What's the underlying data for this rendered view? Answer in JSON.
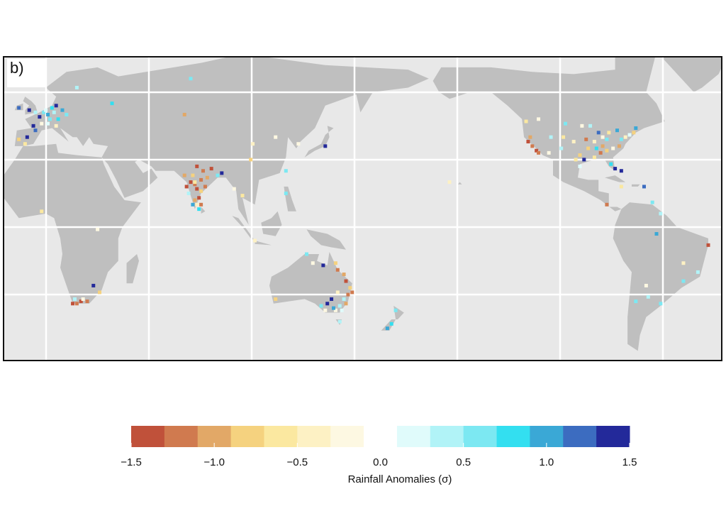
{
  "panel_label": "b)",
  "colorbar": {
    "label": "Rainfall Anomalies (σ)",
    "bounds": [
      -1.5,
      -1.3,
      -1.1,
      -0.9,
      -0.7,
      -0.5,
      -0.3,
      -0.1,
      0.1,
      0.3,
      0.5,
      0.7,
      0.9,
      1.1,
      1.3,
      1.5
    ],
    "colors": [
      "#c0513a",
      "#d07a4f",
      "#e2a867",
      "#f5d27f",
      "#fbe8a0",
      "#fdf1c4",
      "#fdf8e2",
      "#ffffff",
      "#e0fbfb",
      "#b1f3f7",
      "#7ce8f2",
      "#33dff0",
      "#3aa8d6",
      "#3c6cc0",
      "#23299a"
    ],
    "ticks": [
      {
        "value": -1.5,
        "label": "−1.5"
      },
      {
        "value": -1.0,
        "label": "−1.0"
      },
      {
        "value": -0.5,
        "label": "−0.5"
      },
      {
        "value": 0,
        "label": "0.0"
      },
      0.5,
      {
        "value": 1.0,
        "label": "1.0"
      },
      1.5
    ]
  },
  "stations": {
    "lon": [
      -8,
      -3,
      0,
      2,
      4,
      5,
      6,
      8,
      7,
      9,
      10,
      11,
      3,
      -1,
      -4,
      -8,
      13,
      6,
      15,
      10,
      20,
      0,
      -5,
      37,
      75,
      72,
      105,
      140,
      127,
      121,
      116,
      104,
      72,
      75,
      77,
      78,
      80,
      79,
      77,
      76,
      78,
      80,
      83,
      85,
      88,
      90,
      73,
      76,
      81,
      78,
      74,
      80,
      79,
      77,
      82,
      100,
      96,
      121,
      106,
      -17,
      3,
      30,
      18,
      20,
      22,
      25,
      28,
      31,
      19,
      23,
      131,
      134,
      139,
      145,
      146,
      149,
      150,
      152,
      151,
      149,
      150,
      147,
      145,
      144,
      141,
      138,
      140,
      148,
      143,
      146,
      153,
      147,
      116,
      174,
      172,
      170,
      -160,
      -123,
      -122,
      -120,
      -118,
      -117,
      -121,
      -112,
      -111,
      -105,
      -106,
      -100,
      -97,
      -95,
      -97,
      -94,
      -90,
      -88,
      -86,
      -84,
      -84,
      -82,
      -80,
      -81,
      -78,
      -77,
      -75,
      -73,
      -71,
      -70,
      -83,
      -79,
      -92,
      -96,
      -90,
      -87,
      -89,
      -99,
      -104,
      -117,
      -86,
      -93,
      -77,
      -66,
      -77,
      -84,
      -62,
      -58,
      -35,
      -40,
      -47,
      -58,
      -64,
      -70,
      -65,
      -47,
      -60
    ],
    "lat": [
      53,
      52,
      51,
      49,
      51,
      52,
      50,
      53,
      48,
      51,
      54,
      48,
      46,
      45,
      40,
      39,
      52,
      46,
      50,
      45,
      62,
      43,
      37,
      55,
      66,
      50,
      37,
      36,
      37,
      25,
      40,
      30,
      23,
      20,
      19,
      17,
      16,
      13,
      12,
      10,
      10,
      21,
      22,
      26,
      23,
      24,
      18,
      23,
      25,
      27,
      15,
      10,
      8,
      20,
      18,
      14,
      17,
      15,
      -6,
      14,
      7,
      -1,
      -34,
      -34,
      -33,
      -33,
      -26,
      -29,
      -32,
      -32,
      -12,
      -16,
      -17,
      -16,
      -19,
      -21,
      -24,
      -27,
      -30,
      -32,
      -34,
      -35,
      -37,
      -36,
      -34,
      -35,
      -37,
      -37,
      -32,
      -29,
      -29,
      -42,
      -32,
      -37,
      -43,
      -45,
      20,
      47,
      38,
      36,
      34,
      33,
      40,
      33,
      40,
      40,
      35,
      38,
      32,
      30,
      27,
      39,
      38,
      42,
      40,
      39,
      34,
      28,
      26,
      35,
      36,
      39,
      40,
      41,
      42,
      44,
      42,
      43,
      45,
      45,
      31,
      33,
      35,
      30,
      46,
      48,
      36,
      35,
      25,
      18,
      18,
      10,
      11,
      6,
      -8,
      -20,
      -24,
      -34,
      -31,
      -33,
      -26,
      -16,
      -3
    ],
    "anomaly": [
      1.2,
      1.5,
      0.4,
      1.4,
      0.6,
      0.2,
      1.0,
      0.8,
      0.5,
      0.3,
      1.3,
      0.7,
      -0.2,
      1.4,
      1.5,
      -0.8,
      0.9,
      0.2,
      0.6,
      -0.4,
      0.4,
      1.1,
      -0.6,
      0.7,
      0.6,
      -1.0,
      -0.5,
      1.3,
      -0.2,
      0.6,
      -0.3,
      -0.9,
      -1.0,
      -1.4,
      -1.2,
      -1.5,
      -0.8,
      -1.4,
      -1.1,
      1.0,
      -0.4,
      -1.3,
      -1.0,
      -1.4,
      0.5,
      1.4,
      -1.4,
      -0.9,
      -1.2,
      -1.5,
      0.4,
      -1.3,
      0.8,
      -0.6,
      -1.3,
      -0.6,
      -0.3,
      0.6,
      -0.4,
      -0.5,
      -0.6,
      -0.3,
      -1.4,
      -1.3,
      -1.5,
      -1.2,
      1.5,
      -0.8,
      0.3,
      -0.2,
      0.6,
      -0.3,
      1.3,
      -0.8,
      -1.2,
      -1.0,
      -1.4,
      -0.9,
      -1.3,
      0.3,
      -1.1,
      0.4,
      -0.2,
      0.9,
      1.4,
      0.6,
      -0.3,
      0.2,
      1.5,
      -0.5,
      -1.2,
      0.3,
      -0.8,
      0.5,
      0.7,
      1.0,
      -0.4,
      -0.7,
      -1.4,
      -1.3,
      -1.5,
      -1.2,
      -1.0,
      -0.2,
      0.4,
      -0.6,
      0.3,
      -0.4,
      -0.9,
      1.3,
      0.2,
      -1.2,
      -0.5,
      1.1,
      -0.3,
      0.5,
      -0.8,
      0.7,
      1.4,
      -0.2,
      -1.1,
      0.6,
      -0.4,
      0.2,
      -0.9,
      0.9,
      -0.6,
      1.0,
      0.4,
      -0.2,
      -0.7,
      -1.3,
      0.8,
      -0.6,
      0.5,
      -0.3,
      -1.0,
      -0.8,
      1.5,
      1.2,
      -0.7,
      -1.3,
      0.5,
      0.4,
      -1.4,
      0.4,
      0.6,
      0.5,
      0.3,
      0.5,
      -0.3,
      -0.4,
      1.0
    ]
  }
}
